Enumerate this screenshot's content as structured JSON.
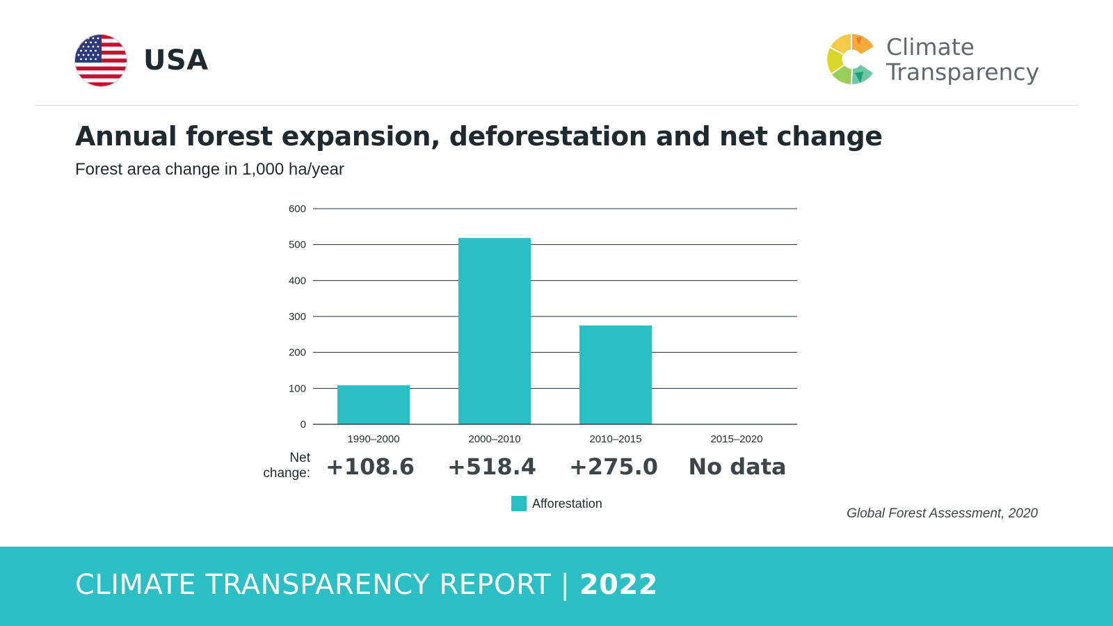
{
  "header": {
    "country": "USA",
    "brand_line1": "Climate",
    "brand_line2": "Transparency"
  },
  "chart_data": {
    "type": "bar",
    "title": "Annual forest expansion, deforestation and net change",
    "subtitle": "Forest area change in 1,000 ha/year",
    "categories": [
      "1990–2000",
      "2000–2010",
      "2010–2015",
      "2015–2020"
    ],
    "series": [
      {
        "name": "Afforestation",
        "values": [
          108.6,
          518.4,
          275.0,
          null
        ],
        "color": "#2bbec5"
      }
    ],
    "yticks": [
      "0",
      "100",
      "200",
      "300",
      "400",
      "500",
      "600"
    ],
    "ylim": [
      0,
      600
    ],
    "grid": true,
    "legend": "bottom-center",
    "net_change_label_line1": "Net",
    "net_change_label_line2": "change:",
    "net_change": [
      "+108.6",
      "+518.4",
      "+275.0",
      "No data"
    ]
  },
  "source": "Global Forest Assessment, 2020",
  "footer": {
    "report": "CLIMATE TRANSPARENCY REPORT",
    "separator": "|",
    "year": "2022"
  },
  "colors": {
    "accent": "#2bbec5",
    "text": "#1f2a30"
  }
}
